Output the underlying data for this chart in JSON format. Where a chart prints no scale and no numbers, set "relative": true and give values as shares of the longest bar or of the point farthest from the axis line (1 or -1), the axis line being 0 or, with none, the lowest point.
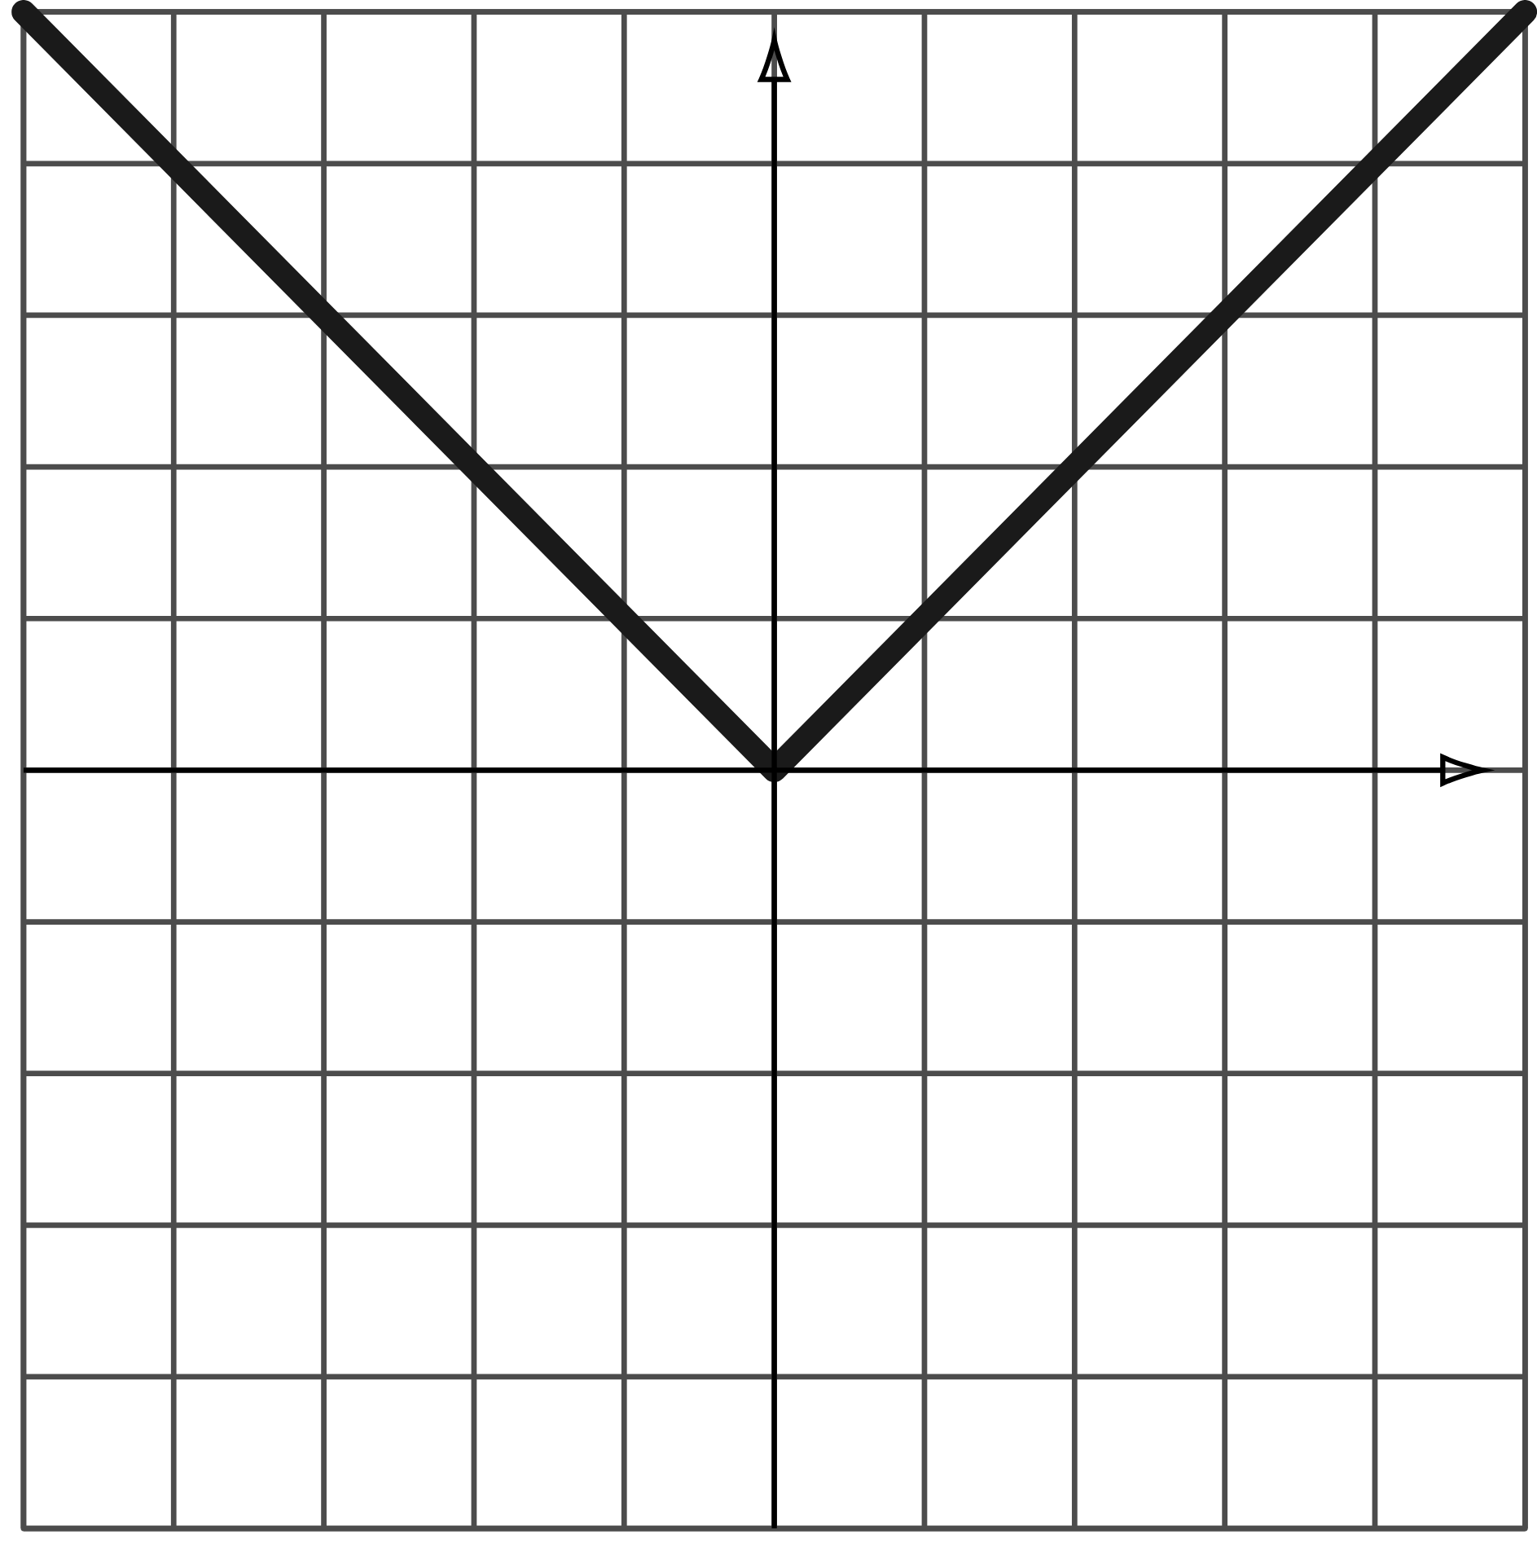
{
  "chart_data": {
    "type": "line",
    "relative": true,
    "categories": [
      null,
      null,
      null
    ],
    "series": [
      {
        "color": "#1a1a1a",
        "values": [
          1,
          0,
          1
        ]
      }
    ],
    "grid": true
  }
}
